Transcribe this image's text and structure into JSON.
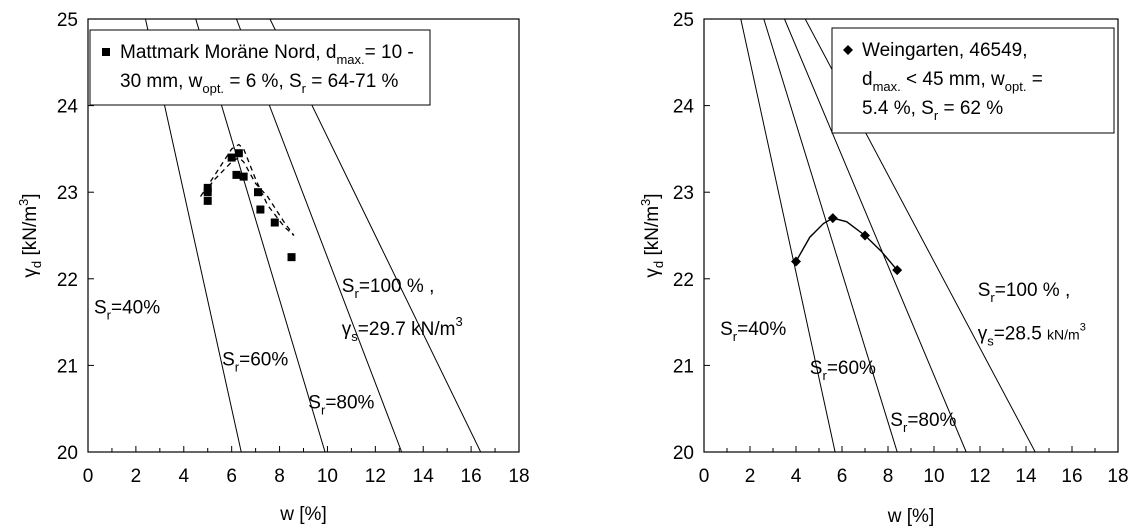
{
  "chart_data": [
    {
      "type": "scatter",
      "xlabel": "w [%]",
      "ylabel": "γd [kN/m3]",
      "xlim": [
        0,
        18
      ],
      "ylim": [
        20,
        25
      ],
      "xticks": [
        "0",
        "2",
        "4",
        "6",
        "8",
        "10",
        "12",
        "14",
        "16",
        "18"
      ],
      "yticks": [
        "20",
        "21",
        "22",
        "23",
        "24",
        "25"
      ],
      "legend": {
        "line1": {
          "parts": [
            {
              "t": "Mattmark Moräne Nord, d"
            },
            {
              "t": "max.",
              "sub": true
            },
            {
              "t": "= 10 -"
            }
          ]
        },
        "line2": {
          "parts": [
            {
              "t": "30 mm, w"
            },
            {
              "t": "opt.",
              "sub": true
            },
            {
              "t": " = 6 %, S"
            },
            {
              "t": "r",
              "sub": true
            },
            {
              "t": " = 64-71 %"
            }
          ]
        },
        "marker": "square"
      },
      "series": [
        {
          "marker": "square",
          "x": [
            5.0,
            5.0,
            5.0,
            6.0,
            6.2,
            6.3,
            6.5,
            7.1,
            7.2,
            7.8,
            8.5
          ],
          "y": [
            22.9,
            23.0,
            23.05,
            23.4,
            23.2,
            23.45,
            23.18,
            23.0,
            22.8,
            22.65,
            22.25
          ]
        }
      ],
      "envelope": {
        "style": "dashed",
        "x": [
          4.7,
          5.3,
          6.0,
          6.3,
          6.5,
          7.0,
          7.5,
          8.2,
          8.6,
          8.2,
          7.5,
          7.0,
          6.5,
          6.3,
          6.0,
          5.3,
          4.7
        ],
        "y": [
          22.95,
          23.2,
          23.5,
          23.55,
          23.5,
          23.15,
          22.85,
          22.6,
          22.5,
          22.65,
          22.95,
          23.1,
          23.35,
          23.4,
          23.35,
          23.15,
          22.95
        ]
      },
      "saturation_lines": [
        {
          "x": [
            2.4,
            6.4
          ],
          "y": [
            25,
            20
          ]
        },
        {
          "x": [
            4.5,
            9.9
          ],
          "y": [
            25,
            20
          ]
        },
        {
          "x": [
            6.2,
            13.1
          ],
          "y": [
            25,
            20
          ]
        },
        {
          "x": [
            7.6,
            16.4
          ],
          "y": [
            25,
            20
          ]
        }
      ],
      "annotations": [
        {
          "parts": [
            {
              "t": "S"
            },
            {
              "t": "r",
              "sub": true
            },
            {
              "t": "=40%"
            }
          ],
          "x": 0.25,
          "y": 21.6
        },
        {
          "parts": [
            {
              "t": "S"
            },
            {
              "t": "r",
              "sub": true
            },
            {
              "t": "=60%"
            }
          ],
          "x": 5.6,
          "y": 21.0
        },
        {
          "parts": [
            {
              "t": "S"
            },
            {
              "t": "r",
              "sub": true
            },
            {
              "t": "=80%"
            }
          ],
          "x": 9.2,
          "y": 20.5
        },
        {
          "parts": [
            {
              "t": "S"
            },
            {
              "t": "r",
              "sub": true
            },
            {
              "t": "=100 % ,"
            }
          ],
          "x": 10.6,
          "y": 21.85
        },
        {
          "parts": [
            {
              "t": "γ",
              "greek": true
            },
            {
              "t": "s",
              "sub": true
            },
            {
              "t": "=29.7 kN/m"
            },
            {
              "t": "3",
              "sup": true
            }
          ],
          "x": 10.6,
          "y": 21.35
        }
      ]
    },
    {
      "type": "scatter",
      "xlabel": "w [%]",
      "ylabel": "γd [kN/m3]",
      "xlim": [
        0,
        18
      ],
      "ylim": [
        20,
        25
      ],
      "xticks": [
        "0",
        "2",
        "4",
        "6",
        "8",
        "10",
        "12",
        "14",
        "16",
        "18"
      ],
      "yticks": [
        "20",
        "21",
        "22",
        "23",
        "24",
        "25"
      ],
      "legend": {
        "line1": {
          "parts": [
            {
              "t": "Weingarten, 46549,"
            }
          ]
        },
        "line2": {
          "parts": [
            {
              "t": "d"
            },
            {
              "t": "max.",
              "sub": true
            },
            {
              "t": " < 45 mm, w"
            },
            {
              "t": "opt.",
              "sub": true
            },
            {
              "t": " ="
            }
          ]
        },
        "line3": {
          "parts": [
            {
              "t": "5.4 %, S"
            },
            {
              "t": "r",
              "sub": true
            },
            {
              "t": " = 62 %"
            }
          ]
        },
        "marker": "diamond"
      },
      "series": [
        {
          "marker": "diamond",
          "x": [
            4.0,
            5.6,
            7.0,
            8.4
          ],
          "y": [
            22.2,
            22.7,
            22.5,
            22.1
          ]
        }
      ],
      "curve": {
        "style": "solid",
        "x": [
          4.0,
          4.6,
          5.2,
          5.6,
          6.2,
          7.0,
          7.7,
          8.4
        ],
        "y": [
          22.2,
          22.48,
          22.64,
          22.7,
          22.66,
          22.5,
          22.32,
          22.1
        ]
      },
      "saturation_lines": [
        {
          "x": [
            1.6,
            5.7
          ],
          "y": [
            25,
            20
          ]
        },
        {
          "x": [
            2.6,
            8.4
          ],
          "y": [
            25,
            20
          ]
        },
        {
          "x": [
            3.5,
            11.4
          ],
          "y": [
            25,
            20
          ]
        },
        {
          "x": [
            4.4,
            14.4
          ],
          "y": [
            25,
            20
          ]
        }
      ],
      "annotations": [
        {
          "parts": [
            {
              "t": "S"
            },
            {
              "t": "r",
              "sub": true
            },
            {
              "t": "=40%"
            }
          ],
          "x": 0.7,
          "y": 21.35
        },
        {
          "parts": [
            {
              "t": "S"
            },
            {
              "t": "r",
              "sub": true
            },
            {
              "t": "=60%"
            }
          ],
          "x": 4.6,
          "y": 20.9
        },
        {
          "parts": [
            {
              "t": "S"
            },
            {
              "t": "r",
              "sub": true
            },
            {
              "t": "=80%"
            }
          ],
          "x": 8.1,
          "y": 20.3
        },
        {
          "parts": [
            {
              "t": "S"
            },
            {
              "t": "r",
              "sub": true
            },
            {
              "t": "=100 % ,"
            }
          ],
          "x": 11.9,
          "y": 21.8
        },
        {
          "parts": [
            {
              "t": "γ",
              "greek": true
            },
            {
              "t": "s",
              "sub": true
            },
            {
              "t": "=28.5 "
            },
            {
              "t": "kN/m",
              "small": true
            },
            {
              "t": "3",
              "sup": true,
              "small": true
            }
          ],
          "x": 11.9,
          "y": 21.3
        }
      ]
    }
  ]
}
